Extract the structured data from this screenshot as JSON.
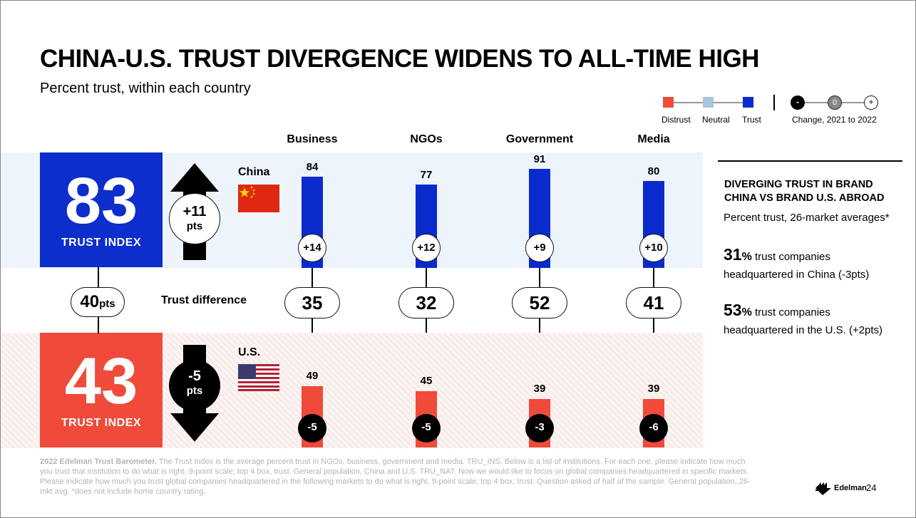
{
  "title": "CHINA-U.S. TRUST DIVERGENCE WIDENS TO ALL-TIME HIGH",
  "subtitle": "Percent trust, within each country",
  "legend": {
    "distrust": "Distrust",
    "neutral": "Neutral",
    "trust": "Trust",
    "change_label": "Change, 2021 to 2022",
    "minus": "-",
    "zero": "0",
    "plus": "+",
    "colors": {
      "distrust": "#f04a3a",
      "neutral": "#a9c6d6",
      "trust": "#0a2bcc"
    }
  },
  "china": {
    "label": "China",
    "trust_index": "83",
    "trust_index_label": "TRUST INDEX",
    "change_value": "+11",
    "change_unit": "pts",
    "color": "#0d2dcc"
  },
  "us": {
    "label": "U.S.",
    "trust_index": "43",
    "trust_index_label": "TRUST INDEX",
    "change_value": "-5",
    "change_unit": "pts",
    "color": "#f04a3a"
  },
  "gap": {
    "value": "40",
    "unit": "pts",
    "label": "Trust difference"
  },
  "chart_data": {
    "type": "bar",
    "categories": [
      "Business",
      "NGOs",
      "Government",
      "Media"
    ],
    "series": [
      {
        "name": "China",
        "values": [
          84,
          77,
          91,
          80
        ],
        "changes": [
          "+14",
          "+12",
          "+9",
          "+10"
        ],
        "color": "#0a2bcc"
      },
      {
        "name": "U.S.",
        "values": [
          49,
          45,
          39,
          39
        ],
        "changes": [
          "-5",
          "-5",
          "-3",
          "-6"
        ],
        "color": "#f04a3a"
      }
    ],
    "differences": [
      35,
      32,
      52,
      41
    ],
    "ylim": [
      0,
      100
    ]
  },
  "side": {
    "heading_line1": "DIVERGING TRUST IN BRAND",
    "heading_line2": "CHINA VS BRAND U.S. ABROAD",
    "subheading": "Percent trust, 26-market averages*",
    "stat1_value": "31",
    "stat1_pct": "%",
    "stat1_text_a": "trust companies",
    "stat1_text_b": "headquartered in China (-3pts)",
    "stat2_value": "53",
    "stat2_pct": "%",
    "stat2_text_a": "trust companies",
    "stat2_text_b": "headquartered in the U.S. (+2pts)"
  },
  "footnote": {
    "bold": "2022 Edelman Trust Barometer.",
    "text": " The Trust Index is the average percent trust in NGOs, business, government and media. TRU_INS. Below is a list of institutions. For each one, please indicate how much you trust that institution to do what is right. 9-point scale; top 4 box, trust. General population, China and U.S. TRU_NAT. Now we would like to focus on global companies headquartered in specific markets. Please indicate how much you trust global companies headquartered in the following markets to do what is right. 9-point scale; top 4 box, trust. Question asked of half of the sample. General population, 26-mkt avg. *does not include home country rating."
  },
  "brand": {
    "name": "Edelman",
    "page": "24"
  }
}
